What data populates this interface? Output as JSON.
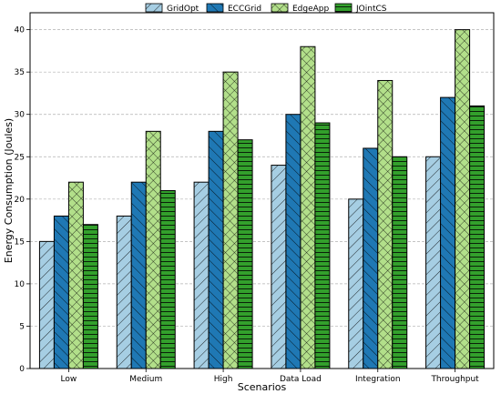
{
  "chart_data": {
    "type": "bar",
    "xlabel": "Scenarios",
    "ylabel": "Energy Consumption (Joules)",
    "ylim": [
      0,
      42
    ],
    "yticks": [
      0,
      5,
      10,
      15,
      20,
      25,
      30,
      35,
      40
    ],
    "grid": "y-dashed",
    "legend_position": "top-center",
    "categories": [
      "Low",
      "Medium",
      "High",
      "Data Load",
      "Integration",
      "Throughput"
    ],
    "series": [
      {
        "name": "GridOpt",
        "values": [
          15,
          18,
          22,
          24,
          20,
          25
        ],
        "color": "#a6cee3",
        "hatch": "diag-right"
      },
      {
        "name": "ECCGrid",
        "values": [
          18,
          22,
          28,
          30,
          26,
          32
        ],
        "color": "#1f78b4",
        "hatch": "diag-left"
      },
      {
        "name": "EdgeApp",
        "values": [
          22,
          28,
          35,
          38,
          34,
          40
        ],
        "color": "#b2df8a",
        "hatch": "cross"
      },
      {
        "name": "JOintCS",
        "values": [
          17,
          21,
          27,
          29,
          25,
          31
        ],
        "color": "#33a02c",
        "hatch": "horizontal"
      }
    ]
  }
}
